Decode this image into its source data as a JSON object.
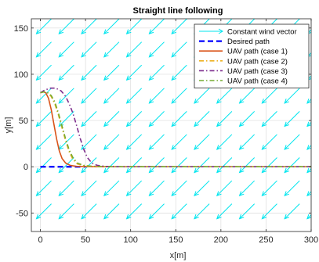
{
  "chart_data": {
    "type": "line",
    "title": "Straight line following",
    "xlabel": "x[m]",
    "ylabel": "y[m]",
    "xlim": [
      -10,
      300
    ],
    "ylim": [
      -70,
      160
    ],
    "xticks": [
      0,
      50,
      100,
      150,
      200,
      250,
      300
    ],
    "yticks": [
      -50,
      0,
      50,
      100,
      150
    ],
    "grid": true,
    "legend_position": "top-right",
    "wind": {
      "name": "Constant wind vector",
      "color": "#00e5ee",
      "direction": [
        -1,
        -1
      ],
      "grid_x": [
        -10,
        15,
        40,
        65,
        90,
        115,
        140,
        165,
        190,
        215,
        240,
        265,
        290
      ],
      "grid_y": [
        -60,
        -35,
        -10,
        15,
        40,
        65,
        90,
        115,
        140
      ]
    },
    "series": [
      {
        "name": "Desired path",
        "color": "#0000ff",
        "style": "dashed",
        "points": [
          [
            0,
            0
          ],
          [
            50,
            0
          ]
        ]
      },
      {
        "name": "UAV path (case 1)",
        "color": "#d95319",
        "style": "solid",
        "points": [
          [
            0,
            80
          ],
          [
            3,
            81
          ],
          [
            6,
            80
          ],
          [
            9,
            74
          ],
          [
            12,
            62
          ],
          [
            15,
            46
          ],
          [
            18,
            30
          ],
          [
            21,
            17
          ],
          [
            24,
            9
          ],
          [
            28,
            4
          ],
          [
            33,
            1.5
          ],
          [
            40,
            0.5
          ],
          [
            50,
            0.2
          ],
          [
            70,
            0
          ],
          [
            100,
            0
          ],
          [
            300,
            0
          ]
        ]
      },
      {
        "name": "UAV path (case 2)",
        "color": "#edb120",
        "style": "dashdot",
        "points": [
          [
            0,
            80
          ],
          [
            4,
            81
          ],
          [
            8,
            80
          ],
          [
            12,
            76
          ],
          [
            16,
            68
          ],
          [
            20,
            56
          ],
          [
            24,
            42
          ],
          [
            28,
            28
          ],
          [
            32,
            16
          ],
          [
            36,
            8
          ],
          [
            41,
            3
          ],
          [
            48,
            1
          ],
          [
            60,
            0.3
          ],
          [
            80,
            0
          ],
          [
            120,
            0
          ],
          [
            300,
            0
          ]
        ]
      },
      {
        "name": "UAV path (case 3)",
        "color": "#7e2f8e",
        "style": "dashdot",
        "points": [
          [
            0,
            80
          ],
          [
            5,
            83
          ],
          [
            11,
            85
          ],
          [
            17,
            85
          ],
          [
            23,
            82
          ],
          [
            28,
            76
          ],
          [
            32,
            68
          ],
          [
            36,
            58
          ],
          [
            40,
            45
          ],
          [
            44,
            31
          ],
          [
            48,
            19
          ],
          [
            52,
            10
          ],
          [
            57,
            4
          ],
          [
            63,
            1.5
          ],
          [
            72,
            0.4
          ],
          [
            90,
            0
          ],
          [
            130,
            0
          ],
          [
            300,
            0
          ]
        ]
      },
      {
        "name": "UAV path (case 4)",
        "color": "#77ac30",
        "style": "dashdot",
        "points": [
          [
            0,
            80
          ],
          [
            4,
            81
          ],
          [
            8,
            80
          ],
          [
            12,
            77
          ],
          [
            16,
            70
          ],
          [
            20,
            58
          ],
          [
            24,
            44
          ],
          [
            28,
            30
          ],
          [
            32,
            18
          ],
          [
            36,
            10
          ],
          [
            41,
            4
          ],
          [
            48,
            1.5
          ],
          [
            58,
            0.5
          ],
          [
            75,
            0
          ],
          [
            110,
            0
          ],
          [
            300,
            0
          ]
        ]
      }
    ]
  }
}
